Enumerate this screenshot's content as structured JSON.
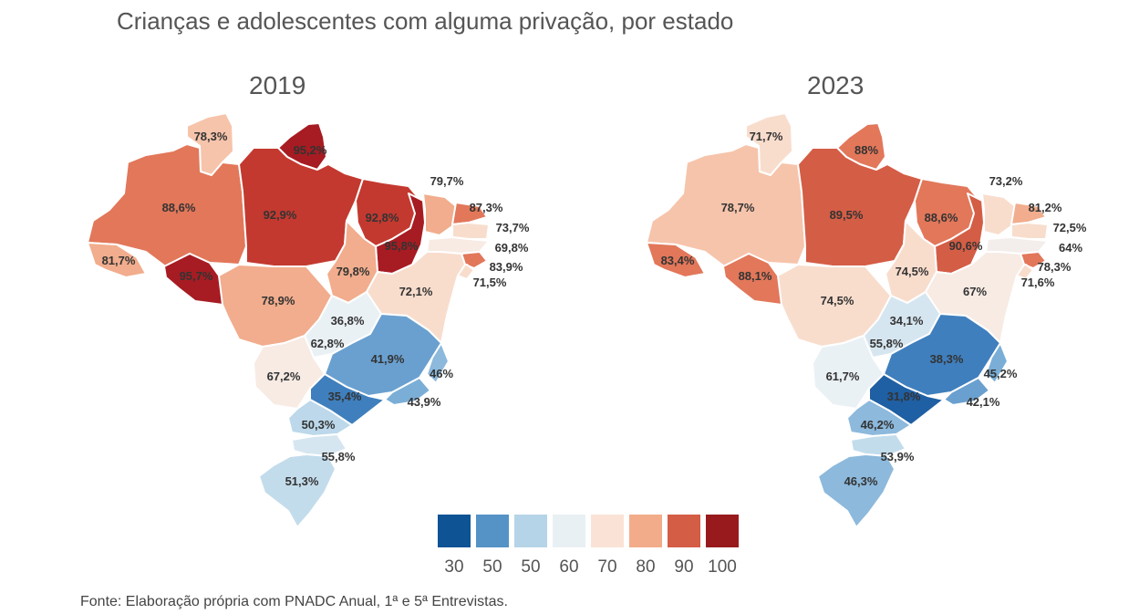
{
  "title": "Crianças e adolescentes com alguma privação, por estado",
  "maps": [
    {
      "year": "2019",
      "regions": [
        {
          "label": "78,3%",
          "value": 78.3,
          "color": "#f6c4ab"
        },
        {
          "label": "95,2%",
          "value": 95.2,
          "color": "#a61c22"
        },
        {
          "label": "88,6%",
          "value": 88.6,
          "color": "#e2775a"
        },
        {
          "label": "92,9%",
          "value": 92.9,
          "color": "#c3392f"
        },
        {
          "label": "92,8%",
          "value": 92.8,
          "color": "#c3392f"
        },
        {
          "label": "95,8%",
          "value": 95.8,
          "color": "#a61c22"
        },
        {
          "label": "79,7%",
          "value": 79.7,
          "color": "#f1ad8d"
        },
        {
          "label": "87,3%",
          "value": 87.3,
          "color": "#e2775a"
        },
        {
          "label": "73,7%",
          "value": 73.7,
          "color": "#f8ddcd"
        },
        {
          "label": "69,8%",
          "value": 69.8,
          "color": "#f7ebe4"
        },
        {
          "label": "83,9%",
          "value": 83.9,
          "color": "#e2775a"
        },
        {
          "label": "71,5%",
          "value": 71.5,
          "color": "#f8ddcd"
        },
        {
          "label": "81,7%",
          "value": 81.7,
          "color": "#f1ad8d"
        },
        {
          "label": "95,7%",
          "value": 95.7,
          "color": "#a61c22"
        },
        {
          "label": "79,8%",
          "value": 79.8,
          "color": "#f1ad8d"
        },
        {
          "label": "72,1%",
          "value": 72.1,
          "color": "#f8ddcd"
        },
        {
          "label": "78,9%",
          "value": 78.9,
          "color": "#f1ad8d"
        },
        {
          "label": "36,8%",
          "value": 36.8,
          "color": "#5a96c8"
        },
        {
          "label": "62,8%",
          "value": 62.8,
          "color": "#eaf1f5"
        },
        {
          "label": "41,9%",
          "value": 41.9,
          "color": "#6aa0cf"
        },
        {
          "label": "46%",
          "value": 46,
          "color": "#8cb9dc"
        },
        {
          "label": "67,2%",
          "value": 67.2,
          "color": "#f7ebe4"
        },
        {
          "label": "35,4%",
          "value": 35.4,
          "color": "#3f7fbd"
        },
        {
          "label": "43,9%",
          "value": 43.9,
          "color": "#7aaed6"
        },
        {
          "label": "50,3%",
          "value": 50.3,
          "color": "#bcd8ea"
        },
        {
          "label": "55,8%",
          "value": 55.8,
          "color": "#d6e6f0"
        },
        {
          "label": "51,3%",
          "value": 51.3,
          "color": "#c3dcec"
        }
      ]
    },
    {
      "year": "2023",
      "regions": [
        {
          "label": "71,7%",
          "value": 71.7,
          "color": "#f8ddcd"
        },
        {
          "label": "88%",
          "value": 88,
          "color": "#e2775a"
        },
        {
          "label": "78,7%",
          "value": 78.7,
          "color": "#f6c4ab"
        },
        {
          "label": "89,5%",
          "value": 89.5,
          "color": "#d45d45"
        },
        {
          "label": "88,6%",
          "value": 88.6,
          "color": "#e2775a"
        },
        {
          "label": "90,6%",
          "value": 90.6,
          "color": "#d45d45"
        },
        {
          "label": "73,2%",
          "value": 73.2,
          "color": "#f8ddcd"
        },
        {
          "label": "81,2%",
          "value": 81.2,
          "color": "#f1ad8d"
        },
        {
          "label": "72,5%",
          "value": 72.5,
          "color": "#f8ddcd"
        },
        {
          "label": "64%",
          "value": 64,
          "color": "#f3eeeb"
        },
        {
          "label": "78,3%",
          "value": 78.3,
          "color": "#e2775a"
        },
        {
          "label": "71,6%",
          "value": 71.6,
          "color": "#f8ddcd"
        },
        {
          "label": "83,4%",
          "value": 83.4,
          "color": "#e2775a"
        },
        {
          "label": "88,1%",
          "value": 88.1,
          "color": "#e2775a"
        },
        {
          "label": "74,5%",
          "value": 74.5,
          "color": "#f8ddcd"
        },
        {
          "label": "67%",
          "value": 67,
          "color": "#f7ebe4"
        },
        {
          "label": "74,5%",
          "value": 74.5,
          "color": "#f8ddcd"
        },
        {
          "label": "34,1%",
          "value": 34.1,
          "color": "#4f8cc3"
        },
        {
          "label": "55,8%",
          "value": 55.8,
          "color": "#d6e6f0"
        },
        {
          "label": "38,3%",
          "value": 38.3,
          "color": "#3f7fbd"
        },
        {
          "label": "45,2%",
          "value": 45.2,
          "color": "#7aaed6"
        },
        {
          "label": "61,7%",
          "value": 61.7,
          "color": "#eaf1f5"
        },
        {
          "label": "31,8%",
          "value": 31.8,
          "color": "#1f5fa3"
        },
        {
          "label": "42,1%",
          "value": 42.1,
          "color": "#6aa0cf"
        },
        {
          "label": "46,2%",
          "value": 46.2,
          "color": "#8cb9dc"
        },
        {
          "label": "53,9%",
          "value": 53.9,
          "color": "#c3dcec"
        },
        {
          "label": "46,3%",
          "value": 46.3,
          "color": "#8cb9dc"
        }
      ]
    }
  ],
  "legend": {
    "items": [
      {
        "label": "30",
        "color": "#0e5394"
      },
      {
        "label": "50",
        "color": "#5592c6"
      },
      {
        "label": "50",
        "color": "#b5d4e8"
      },
      {
        "label": "60",
        "color": "#e9f0f4"
      },
      {
        "label": "70",
        "color": "#fae3d6"
      },
      {
        "label": "80",
        "color": "#f2ac8a"
      },
      {
        "label": "90",
        "color": "#d45d45"
      },
      {
        "label": "100",
        "color": "#981a1d"
      }
    ]
  },
  "source": "Fonte: Elaboração própria com PNADC Anual, 1ª e 5ª Entrevistas."
}
